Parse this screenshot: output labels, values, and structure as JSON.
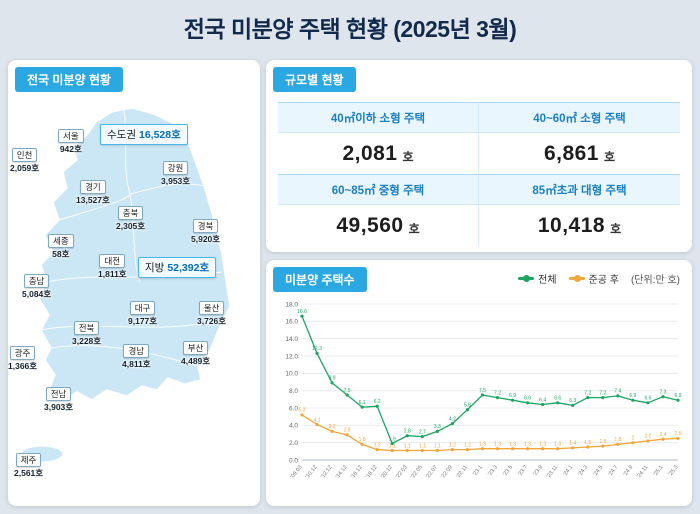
{
  "title": "전국 미분양 주택 현황  (2025년 3월)",
  "colors": {
    "badge_blue": "#2ba7e1",
    "title_navy": "#13294b",
    "map_fill": "#cbe7f6",
    "highlight_border": "#4db6e8",
    "highlight_value": "#0c6cb5",
    "total_green": "#1fa463",
    "completed_orange": "#f0a63a"
  },
  "map_panel": {
    "badge": "전국 미분양 현황",
    "highlights": [
      {
        "name": "수도권",
        "value": "16,528호"
      },
      {
        "name": "지방",
        "value": "52,392호"
      }
    ],
    "regions": [
      {
        "name": "서울",
        "value": "942호"
      },
      {
        "name": "인천",
        "value": "2,059호"
      },
      {
        "name": "강원",
        "value": "3,953호"
      },
      {
        "name": "경기",
        "value": "13,527호"
      },
      {
        "name": "충북",
        "value": "2,305호"
      },
      {
        "name": "경북",
        "value": "5,920호"
      },
      {
        "name": "세종",
        "value": "58호"
      },
      {
        "name": "대전",
        "value": "1,811호"
      },
      {
        "name": "충남",
        "value": "5,084호"
      },
      {
        "name": "대구",
        "value": "9,177호"
      },
      {
        "name": "울산",
        "value": "3,726호"
      },
      {
        "name": "전북",
        "value": "3,228호"
      },
      {
        "name": "부산",
        "value": "4,489호"
      },
      {
        "name": "경남",
        "value": "4,811호"
      },
      {
        "name": "광주",
        "value": "1,366호"
      },
      {
        "name": "전남",
        "value": "3,903호"
      },
      {
        "name": "제주",
        "value": "2,561호"
      }
    ]
  },
  "scale_panel": {
    "badge": "규모별 현황",
    "cells": [
      {
        "header": "40㎡이하 소형 주택",
        "value": "2,081",
        "unit": "호"
      },
      {
        "header": "40~60㎡ 소형 주택",
        "value": "6,861",
        "unit": "호"
      },
      {
        "header": "60~85㎡ 중형 주택",
        "value": "49,560",
        "unit": "호"
      },
      {
        "header": "85㎡초과 대형 주택",
        "value": "10,418",
        "unit": "호"
      }
    ]
  },
  "chart_panel": {
    "badge": "미분양 주택수",
    "legend": [
      {
        "label": "전체",
        "color": "#1fa463"
      },
      {
        "label": "준공 후",
        "color": "#f0a63a"
      }
    ],
    "unit_label": "(단위:만 호)"
  },
  "chart_data": {
    "type": "line",
    "title": "미분양 주택수",
    "unit": "만 호",
    "ylim": [
      0,
      18
    ],
    "ytick_step": 2,
    "grid": true,
    "legend_position": "top-right",
    "x": [
      "'09.03",
      "'10.12",
      "'12.12",
      "'14.12",
      "'16.12",
      "'18.12",
      "'20.12",
      "'22.03",
      "'22.05",
      "'22.07",
      "'22.09",
      "'22.11",
      "'23.1",
      "'23.3",
      "'23.5",
      "'23.7",
      "'23.9",
      "'23.11",
      "'24.1",
      "'24.3",
      "'24.5",
      "'24.7",
      "'24.9",
      "'24.11",
      "'25.1",
      "'25.3"
    ],
    "series": [
      {
        "name": "전체",
        "color": "#1fa463",
        "values": [
          16.6,
          12.3,
          8.9,
          7.5,
          6.1,
          6.2,
          1.9,
          2.8,
          2.7,
          3.3,
          4.2,
          5.8,
          7.5,
          7.2,
          6.9,
          6.6,
          6.4,
          6.6,
          6.3,
          7.2,
          7.2,
          7.4,
          6.9,
          6.6,
          7.3,
          6.9
        ]
      },
      {
        "name": "준공 후",
        "color": "#f0a63a",
        "values": [
          5.2,
          4.1,
          3.3,
          2.9,
          1.8,
          1.2,
          1.1,
          1.1,
          1.1,
          1.1,
          1.2,
          1.2,
          1.3,
          1.3,
          1.3,
          1.3,
          1.3,
          1.3,
          1.4,
          1.5,
          1.6,
          1.8,
          2.0,
          2.2,
          2.4,
          2.5
        ]
      }
    ]
  }
}
